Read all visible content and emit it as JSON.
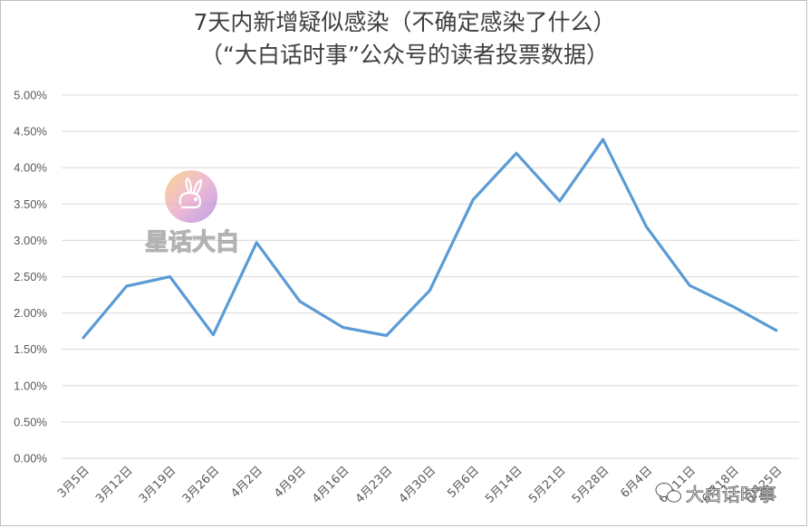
{
  "chart_data": {
    "type": "line",
    "title": "7天内新增疑似感染（不确定感染了什么）",
    "subtitle": "（“大白话时事”公众号的读者投票数据）",
    "xlabel": "",
    "ylabel": "",
    "categories": [
      "3月5日",
      "3月12日",
      "3月19日",
      "3月26日",
      "4月2日",
      "4月9日",
      "4月16日",
      "4月23日",
      "4月30日",
      "5月6日",
      "5月14日",
      "5月21日",
      "5月28日",
      "6月4日",
      "6月11日",
      "6月18日",
      "6月25日"
    ],
    "tick_labels_x": [
      "3月5日",
      "3月12日",
      "3月19日",
      "3月26日",
      "4月2日",
      "4月9日",
      "4月16日",
      "4月23日",
      "4月30日",
      "5月6日",
      "5月14日",
      "5月21日",
      "5月28日",
      "6月4日",
      "6月11日",
      "6月18日",
      "6月25日"
    ],
    "values": [
      1.66,
      2.37,
      2.5,
      1.7,
      2.97,
      2.16,
      1.8,
      1.69,
      2.31,
      3.56,
      4.2,
      3.54,
      4.39,
      3.19,
      2.38,
      2.09,
      1.76
    ],
    "ylim": [
      0,
      5
    ],
    "tick_labels_y": [
      "0.00%",
      "0.50%",
      "1.00%",
      "1.50%",
      "2.00%",
      "2.50%",
      "3.00%",
      "3.50%",
      "4.00%",
      "4.50%",
      "5.00%"
    ],
    "grid": true,
    "line_color": "#5b9bd5",
    "grid_color": "#d9d9d9"
  },
  "watermark": {
    "logo_text": "星话大白",
    "logo_icon": "rabbit-icon",
    "corner_text": "大白话时事",
    "corner_icon": "wechat-icon"
  }
}
